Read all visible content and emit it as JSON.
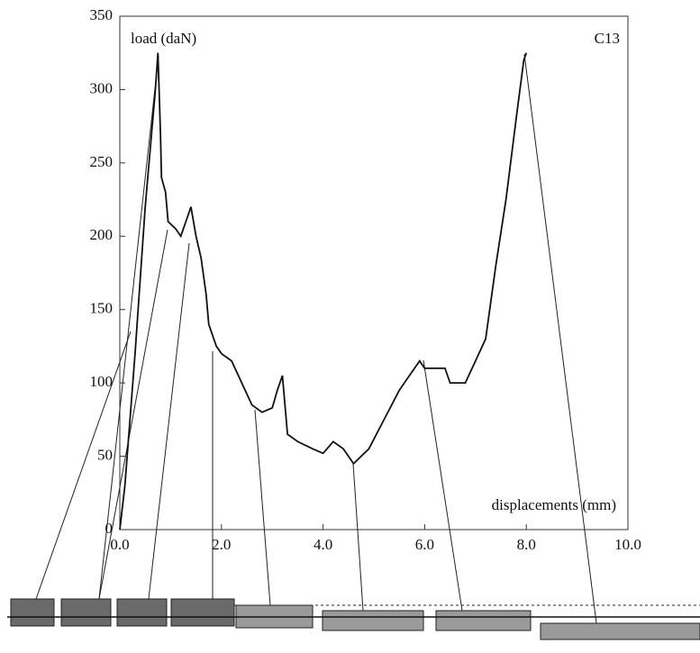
{
  "chart_data": {
    "type": "line",
    "annotations": [
      "load (daN)",
      "C13",
      "displacements (mm)"
    ],
    "x": [
      0,
      0.1,
      0.3,
      0.5,
      0.7,
      0.75,
      0.8,
      0.82,
      0.9,
      0.95,
      1.1,
      1.2,
      1.3,
      1.4,
      1.5,
      1.6,
      1.7,
      1.75,
      1.9,
      2.0,
      2.2,
      2.4,
      2.6,
      2.8,
      3.0,
      3.1,
      3.2,
      3.3,
      3.5,
      3.8,
      4.0,
      4.2,
      4.4,
      4.6,
      4.9,
      5.2,
      5.5,
      5.9,
      6.0,
      6.4,
      6.5,
      6.8,
      7.0,
      7.2,
      7.4,
      7.6,
      7.8,
      7.95,
      8.0
    ],
    "series": [
      {
        "color": "#111111",
        "values": [
          0,
          30,
          120,
          220,
          300,
          325,
          270,
          240,
          230,
          210,
          205,
          200,
          210,
          220,
          200,
          185,
          160,
          140,
          125,
          120,
          115,
          100,
          85,
          80,
          83,
          95,
          105,
          65,
          60,
          55,
          52,
          60,
          55,
          45,
          55,
          75,
          95,
          115,
          110,
          110,
          100,
          100,
          115,
          130,
          180,
          225,
          280,
          320,
          325
        ]
      }
    ],
    "xlim": [
      0,
      10
    ],
    "xticks": [
      {
        "value": 0,
        "label": "0.0"
      },
      {
        "value": 2,
        "label": "2.0"
      },
      {
        "value": 4,
        "label": "4.0"
      },
      {
        "value": 6,
        "label": "6.0"
      },
      {
        "value": 8,
        "label": "8.0"
      },
      {
        "value": 10,
        "label": "10.0"
      }
    ],
    "ylim": [
      0,
      350
    ],
    "yticks": [
      0,
      50,
      100,
      150,
      200,
      250,
      300,
      350
    ]
  }
}
